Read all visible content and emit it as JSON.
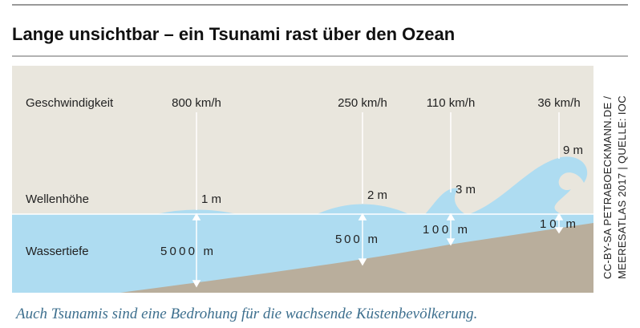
{
  "title": "Lange unsichtbar – ein Tsunami rast über den Ozean",
  "labels": {
    "speed": "Geschwindigkeit",
    "height": "Wellenhöhe",
    "depth": "Wassertiefe"
  },
  "stations": [
    {
      "speed": "800 km/h",
      "height": "1 m",
      "depth": "5000 m"
    },
    {
      "speed": "250 km/h",
      "height": "2 m",
      "depth": "500 m"
    },
    {
      "speed": "110 km/h",
      "height": "3 m",
      "depth": "100 m"
    },
    {
      "speed": "36 km/h",
      "height": "9 m",
      "depth": "10 m"
    }
  ],
  "credit": [
    "CC-BY-SA PETRABOECKMANN.DE /",
    "MEERESATLAS 2017 | QUELLE: IOC"
  ],
  "caption": "Auch Tsunamis sind eine Bedrohung für die wachsende Küstenbevölkerung."
}
